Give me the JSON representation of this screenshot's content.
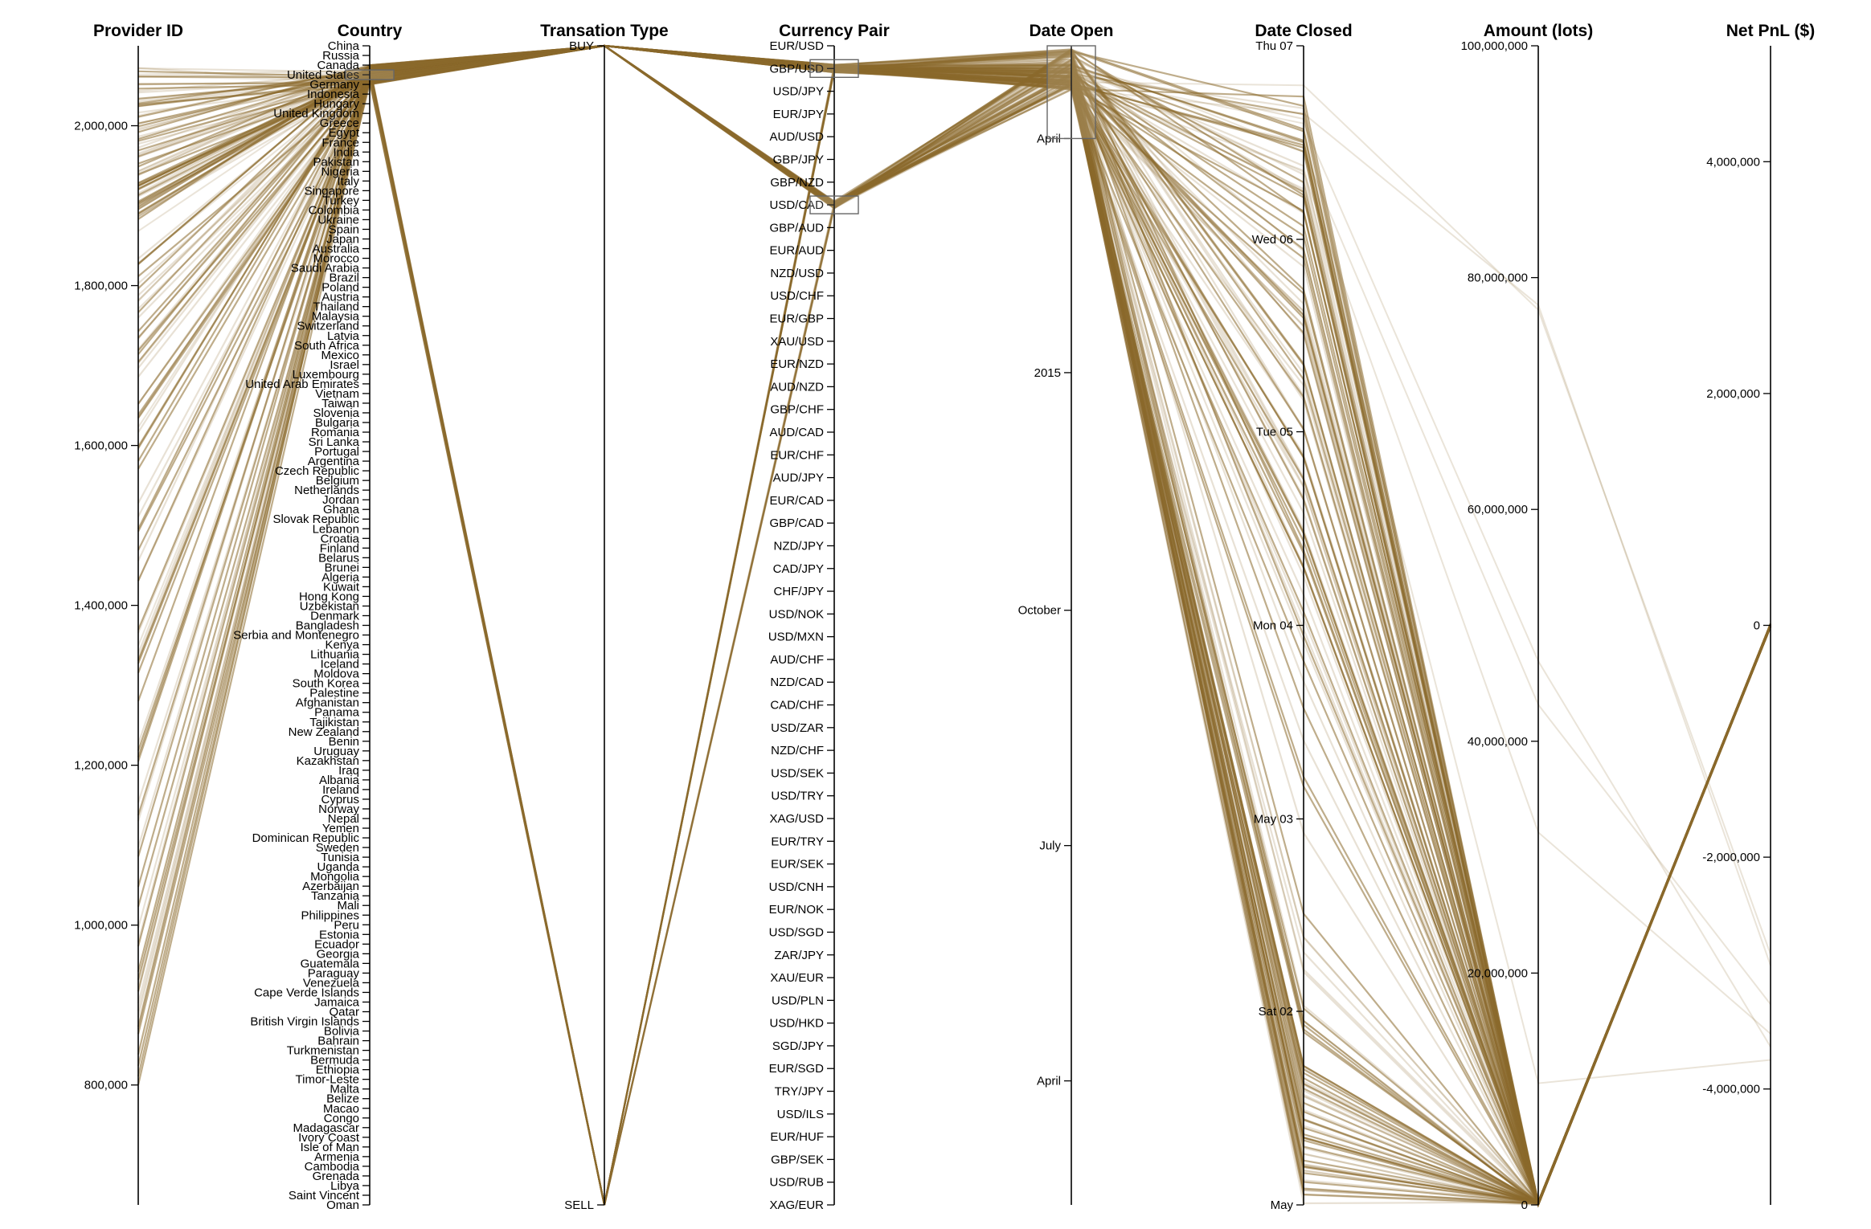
{
  "chart_data": {
    "type": "parallel-coordinates",
    "line_color": "#8b6a2b",
    "dimensions": [
      {
        "name": "Provider ID",
        "kind": "linear",
        "range": [
          650000,
          2100000
        ],
        "ticks": [
          {
            "value": 800000,
            "label": "800,000"
          },
          {
            "value": 1000000,
            "label": "1,000,000"
          },
          {
            "value": 1200000,
            "label": "1,200,000"
          },
          {
            "value": 1400000,
            "label": "1,400,000"
          },
          {
            "value": 1600000,
            "label": "1,600,000"
          },
          {
            "value": 1800000,
            "label": "1,800,000"
          },
          {
            "value": 2000000,
            "label": "2,000,000"
          }
        ]
      },
      {
        "name": "Country",
        "kind": "categorical",
        "categories": [
          "China",
          "Russia",
          "Canada",
          "United States",
          "Germany",
          "Indonesia",
          "Hungary",
          "United Kingdom",
          "Greece",
          "Egypt",
          "France",
          "India",
          "Pakistan",
          "Nigeria",
          "Italy",
          "Singapore",
          "Turkey",
          "Colombia",
          "Ukraine",
          "Spain",
          "Japan",
          "Australia",
          "Morocco",
          "Saudi Arabia",
          "Brazil",
          "Poland",
          "Austria",
          "Thailand",
          "Malaysia",
          "Switzerland",
          "Latvia",
          "South Africa",
          "Mexico",
          "Israel",
          "Luxembourg",
          "United Arab Emirates",
          "Vietnam",
          "Taiwan",
          "Slovenia",
          "Bulgaria",
          "Romania",
          "Sri Lanka",
          "Portugal",
          "Argentina",
          "Czech Republic",
          "Belgium",
          "Netherlands",
          "Jordan",
          "Ghana",
          "Slovak Republic",
          "Lebanon",
          "Croatia",
          "Finland",
          "Belarus",
          "Brunei",
          "Algeria",
          "Kuwait",
          "Hong Kong",
          "Uzbekistan",
          "Denmark",
          "Bangladesh",
          "Serbia and Montenegro",
          "Kenya",
          "Lithuania",
          "Iceland",
          "Moldova",
          "South Korea",
          "Palestine",
          "Afghanistan",
          "Panama",
          "Tajikistan",
          "New Zealand",
          "Benin",
          "Uruguay",
          "Kazakhstan",
          "Iraq",
          "Albania",
          "Ireland",
          "Cyprus",
          "Norway",
          "Nepal",
          "Yemen",
          "Dominican Republic",
          "Sweden",
          "Tunisia",
          "Uganda",
          "Mongolia",
          "Azerbaijan",
          "Tanzania",
          "Mali",
          "Philippines",
          "Peru",
          "Estonia",
          "Ecuador",
          "Georgia",
          "Guatemala",
          "Paraguay",
          "Venezuela",
          "Cape Verde Islands",
          "Jamaica",
          "Qatar",
          "British Virgin Islands",
          "Bolivia",
          "Bahrain",
          "Turkmenistan",
          "Bermuda",
          "Ethiopia",
          "Timor-Leste",
          "Malta",
          "Belize",
          "Macao",
          "Congo",
          "Madagascar",
          "Ivory Coast",
          "Isle of Man",
          "Armenia",
          "Cambodia",
          "Grenada",
          "Libya",
          "Saint Vincent",
          "Oman"
        ]
      },
      {
        "name": "Transation Type",
        "kind": "categorical",
        "categories": [
          "BUY",
          "SELL"
        ]
      },
      {
        "name": "Currency Pair",
        "kind": "categorical",
        "categories": [
          "EUR/USD",
          "GBP/USD",
          "USD/JPY",
          "EUR/JPY",
          "AUD/USD",
          "GBP/JPY",
          "GBP/NZD",
          "USD/CAD",
          "GBP/AUD",
          "EUR/AUD",
          "NZD/USD",
          "USD/CHF",
          "EUR/GBP",
          "XAU/USD",
          "EUR/NZD",
          "AUD/NZD",
          "GBP/CHF",
          "AUD/CAD",
          "EUR/CHF",
          "AUD/JPY",
          "EUR/CAD",
          "GBP/CAD",
          "NZD/JPY",
          "CAD/JPY",
          "CHF/JPY",
          "USD/NOK",
          "USD/MXN",
          "AUD/CHF",
          "NZD/CAD",
          "CAD/CHF",
          "USD/ZAR",
          "NZD/CHF",
          "USD/SEK",
          "USD/TRY",
          "XAG/USD",
          "EUR/TRY",
          "EUR/SEK",
          "USD/CNH",
          "EUR/NOK",
          "USD/SGD",
          "ZAR/JPY",
          "XAU/EUR",
          "USD/PLN",
          "USD/HKD",
          "SGD/JPY",
          "EUR/SGD",
          "TRY/JPY",
          "USD/ILS",
          "EUR/HUF",
          "GBP/SEK",
          "USD/RUB",
          "XAG/EUR"
        ]
      },
      {
        "name": "Date Open",
        "kind": "time",
        "ticks": [
          {
            "label": "April",
            "pos": 0.08
          },
          {
            "label": "2015",
            "pos": 0.282
          },
          {
            "label": "October",
            "pos": 0.487
          },
          {
            "label": "July",
            "pos": 0.69
          },
          {
            "label": "April",
            "pos": 0.893
          }
        ]
      },
      {
        "name": "Date Closed",
        "kind": "time",
        "ticks": [
          {
            "label": "Thu 07",
            "pos": 0.0
          },
          {
            "label": "Wed 06",
            "pos": 0.167
          },
          {
            "label": "Tue 05",
            "pos": 0.333
          },
          {
            "label": "Mon 04",
            "pos": 0.5
          },
          {
            "label": "May 03",
            "pos": 0.667
          },
          {
            "label": "Sat 02",
            "pos": 0.833
          },
          {
            "label": "May",
            "pos": 1.0
          }
        ]
      },
      {
        "name": "Amount (lots)",
        "kind": "linear",
        "range": [
          0,
          100000000
        ],
        "ticks": [
          {
            "value": 0,
            "label": "0"
          },
          {
            "value": 20000000,
            "label": "20,000,000"
          },
          {
            "value": 40000000,
            "label": "40,000,000"
          },
          {
            "value": 60000000,
            "label": "60,000,000"
          },
          {
            "value": 80000000,
            "label": "80,000,000"
          },
          {
            "value": 100000000,
            "label": "100,000,000"
          }
        ]
      },
      {
        "name": "Net PnL ($)",
        "kind": "linear",
        "range": [
          -5000000,
          5000000
        ],
        "ticks": [
          {
            "value": -4000000,
            "label": "-4,000,000"
          },
          {
            "value": -2000000,
            "label": "-2,000,000"
          },
          {
            "value": 0,
            "label": "0"
          },
          {
            "value": 2000000,
            "label": "2,000,000"
          },
          {
            "value": 4000000,
            "label": "4,000,000"
          }
        ]
      }
    ],
    "brushes": [
      {
        "dimension": "Country",
        "from_category": "United States",
        "to_category": "United States"
      },
      {
        "dimension": "Currency Pair",
        "from_category": "GBP/USD",
        "to_category": "GBP/USD"
      },
      {
        "dimension": "Currency Pair",
        "from_category": "USD/CAD",
        "to_category": "USD/CAD"
      },
      {
        "dimension": "Date Open",
        "from_pos": 0.0,
        "to_pos": 0.08
      }
    ]
  }
}
